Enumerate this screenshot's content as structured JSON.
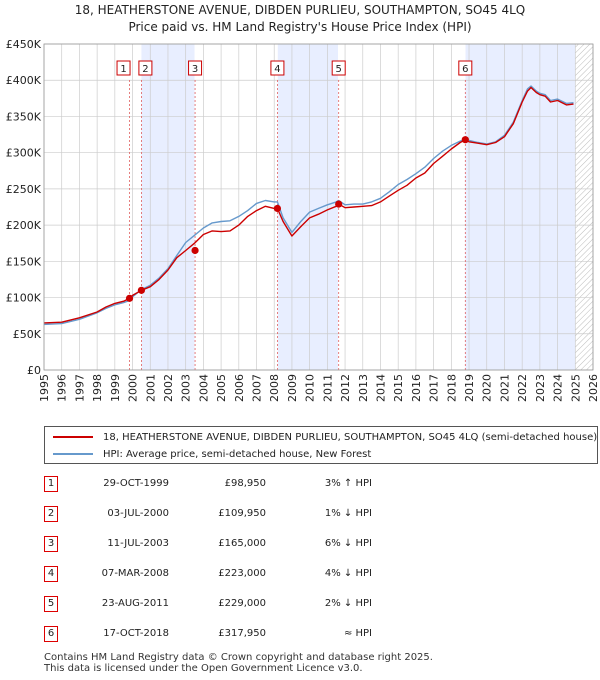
{
  "title_line1": "18, HEATHERSTONE AVENUE, DIBDEN PURLIEU, SOUTHAMPTON, SO45 4LQ",
  "title_line2": "Price paid vs. HM Land Registry's House Price Index (HPI)",
  "colors": {
    "property": "#cc0000",
    "hpi": "#6699cc",
    "shade": "#e8eeff",
    "grid": "#cccccc",
    "marker_border": "#cc0000"
  },
  "chart_data": {
    "type": "line",
    "title": "18, HEATHERSTONE AVENUE, DIBDEN PURLIEU, SOUTHAMPTON, SO45 4LQ — Price paid vs. HM Land Registry's House Price Index (HPI)",
    "xlabel": "",
    "ylabel": "",
    "xlim": [
      1995,
      2026
    ],
    "ylim": [
      0,
      450000
    ],
    "x_ticks": [
      "1995",
      "1996",
      "1997",
      "1998",
      "1999",
      "2000",
      "2001",
      "2002",
      "2003",
      "2004",
      "2005",
      "2006",
      "2007",
      "2008",
      "2009",
      "2010",
      "2011",
      "2012",
      "2013",
      "2014",
      "2015",
      "2016",
      "2017",
      "2018",
      "2019",
      "2020",
      "2021",
      "2022",
      "2023",
      "2024",
      "2025",
      "2026"
    ],
    "y_ticks": [
      {
        "value": 0,
        "label": "£0"
      },
      {
        "value": 50000,
        "label": "£50K"
      },
      {
        "value": 100000,
        "label": "£100K"
      },
      {
        "value": 150000,
        "label": "£150K"
      },
      {
        "value": 200000,
        "label": "£200K"
      },
      {
        "value": 250000,
        "label": "£250K"
      },
      {
        "value": 300000,
        "label": "£300K"
      },
      {
        "value": 350000,
        "label": "£350K"
      },
      {
        "value": 400000,
        "label": "£400K"
      },
      {
        "value": 450000,
        "label": "£450K"
      }
    ],
    "forecast_from": 2025.0,
    "shaded_spans": [
      [
        2000.5,
        2003.5
      ],
      [
        2008.2,
        2011.6
      ],
      [
        2018.8,
        2025.0
      ]
    ],
    "series": [
      {
        "name": "18, HEATHERSTONE AVENUE, DIBDEN PURLIEU, SOUTHAMPTON, SO45 4LQ (semi-detached house)",
        "x": [
          1995.0,
          1996.0,
          1997.0,
          1998.0,
          1998.5,
          1999.0,
          1999.5,
          1999.83,
          2000.0,
          2000.5,
          2001.0,
          2001.5,
          2002.0,
          2002.5,
          2003.0,
          2003.5,
          2004.0,
          2004.5,
          2005.0,
          2005.5,
          2006.0,
          2006.5,
          2007.0,
          2007.5,
          2008.0,
          2008.18,
          2008.5,
          2009.0,
          2009.5,
          2010.0,
          2010.5,
          2011.0,
          2011.5,
          2011.64,
          2012.0,
          2012.5,
          2013.0,
          2013.5,
          2014.0,
          2014.5,
          2015.0,
          2015.5,
          2016.0,
          2016.5,
          2017.0,
          2017.5,
          2018.0,
          2018.5,
          2018.79,
          2019.0,
          2019.5,
          2020.0,
          2020.5,
          2021.0,
          2021.5,
          2022.0,
          2022.3,
          2022.5,
          2022.8,
          2023.0,
          2023.3,
          2023.6,
          2024.0,
          2024.5,
          2024.9
        ],
        "y": [
          65000,
          66000,
          72000,
          80000,
          87000,
          92000,
          95000,
          98950,
          103000,
          109950,
          115000,
          125000,
          138000,
          155000,
          165000,
          175000,
          187000,
          192000,
          191000,
          192000,
          200000,
          212000,
          220000,
          226000,
          223000,
          223000,
          205000,
          185000,
          198000,
          210000,
          215000,
          221000,
          226000,
          229000,
          224000,
          225000,
          226000,
          227000,
          232000,
          240000,
          248000,
          255000,
          265000,
          272000,
          285000,
          295000,
          305000,
          314000,
          317950,
          315000,
          313000,
          311000,
          314000,
          322000,
          340000,
          370000,
          385000,
          390000,
          383000,
          380000,
          378000,
          370000,
          372000,
          366000,
          367000
        ]
      },
      {
        "name": "HPI: Average price, semi-detached house, New Forest",
        "x": [
          1995.0,
          1996.0,
          1997.0,
          1998.0,
          1998.5,
          1999.0,
          1999.5,
          1999.83,
          2000.0,
          2000.5,
          2001.0,
          2001.5,
          2002.0,
          2002.5,
          2003.0,
          2003.5,
          2004.0,
          2004.5,
          2005.0,
          2005.5,
          2006.0,
          2006.5,
          2007.0,
          2007.5,
          2008.0,
          2008.18,
          2008.5,
          2009.0,
          2009.5,
          2010.0,
          2010.5,
          2011.0,
          2011.5,
          2011.64,
          2012.0,
          2012.5,
          2013.0,
          2013.5,
          2014.0,
          2014.5,
          2015.0,
          2015.5,
          2016.0,
          2016.5,
          2017.0,
          2017.5,
          2018.0,
          2018.5,
          2018.79,
          2019.0,
          2019.5,
          2020.0,
          2020.5,
          2021.0,
          2021.5,
          2022.0,
          2022.3,
          2022.5,
          2022.8,
          2023.0,
          2023.3,
          2023.6,
          2024.0,
          2024.5,
          2024.9
        ],
        "y": [
          63000,
          64000,
          70000,
          79000,
          85000,
          90000,
          93000,
          96000,
          101000,
          111000,
          117000,
          127000,
          140000,
          158000,
          176000,
          186000,
          196000,
          203000,
          205000,
          206000,
          212000,
          220000,
          230000,
          234000,
          232000,
          232000,
          210000,
          190000,
          205000,
          218000,
          223000,
          228000,
          232000,
          234000,
          228000,
          229000,
          229000,
          232000,
          237000,
          246000,
          256000,
          263000,
          271000,
          280000,
          292000,
          302000,
          310000,
          316000,
          318000,
          317000,
          314000,
          312000,
          315000,
          324000,
          342000,
          372000,
          388000,
          392000,
          385000,
          382000,
          380000,
          372000,
          374000,
          368000,
          369000
        ]
      }
    ],
    "markers": [
      {
        "label": "1",
        "x": 1999.83,
        "y": 98950
      },
      {
        "label": "2",
        "x": 2000.5,
        "y": 109950
      },
      {
        "label": "3",
        "x": 2003.53,
        "y": 165000
      },
      {
        "label": "4",
        "x": 2008.18,
        "y": 223000
      },
      {
        "label": "5",
        "x": 2011.64,
        "y": 229000
      },
      {
        "label": "6",
        "x": 2018.79,
        "y": 317950
      }
    ]
  },
  "legend": {
    "property_label": "18, HEATHERSTONE AVENUE, DIBDEN PURLIEU, SOUTHAMPTON, SO45 4LQ (semi-detached house)",
    "hpi_label": "HPI: Average price, semi-detached house, New Forest"
  },
  "transactions": [
    {
      "num": "1",
      "date": "29-OCT-1999",
      "price": "£98,950",
      "hpi": "3% ↑ HPI"
    },
    {
      "num": "2",
      "date": "03-JUL-2000",
      "price": "£109,950",
      "hpi": "1% ↓ HPI"
    },
    {
      "num": "3",
      "date": "11-JUL-2003",
      "price": "£165,000",
      "hpi": "6% ↓ HPI"
    },
    {
      "num": "4",
      "date": "07-MAR-2008",
      "price": "£223,000",
      "hpi": "4% ↓ HPI"
    },
    {
      "num": "5",
      "date": "23-AUG-2011",
      "price": "£229,000",
      "hpi": "2% ↓ HPI"
    },
    {
      "num": "6",
      "date": "17-OCT-2018",
      "price": "£317,950",
      "hpi": "≈ HPI"
    }
  ],
  "footer_line1": "Contains HM Land Registry data © Crown copyright and database right 2025.",
  "footer_line2": "This data is licensed under the Open Government Licence v3.0."
}
